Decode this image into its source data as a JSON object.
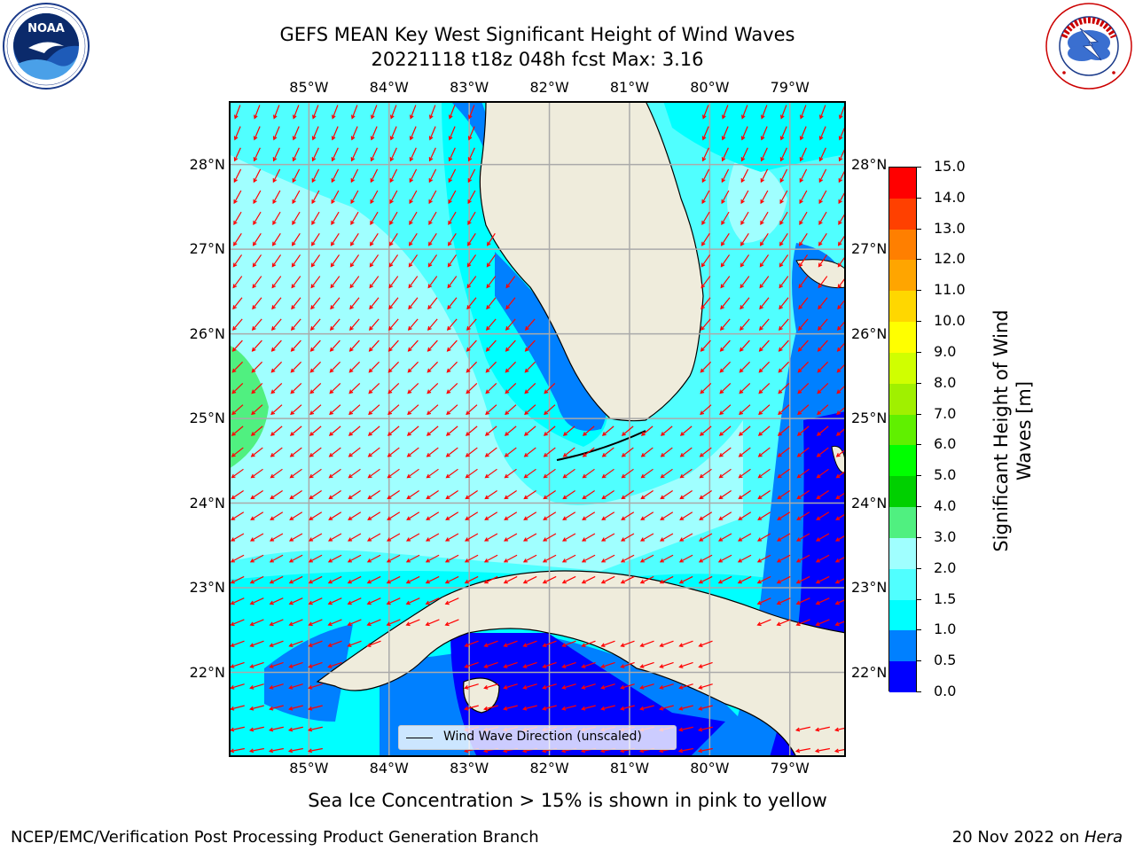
{
  "title": {
    "line1": "GEFS MEAN Key West Significant Height of Wind Waves",
    "line2": "20221118 t18z 048h fcst   Max: 3.16"
  },
  "logos": {
    "noaa_text": "NOAA",
    "noaa_ring": "NATIONAL OCEANIC AND ATMOSPHERIC ADMINISTRATION · U.S. DEPARTMENT OF COMMERCE",
    "nws_ring": "NATIONAL WEATHER SERVICE"
  },
  "map": {
    "lon_ticks": [
      "85°W",
      "84°W",
      "83°W",
      "82°W",
      "81°W",
      "80°W",
      "79°W"
    ],
    "lat_ticks": [
      "28°N",
      "27°N",
      "26°N",
      "25°N",
      "24°N",
      "23°N",
      "22°N"
    ],
    "lon_values": [
      -85,
      -84,
      -83,
      -82,
      -81,
      -80,
      -79
    ],
    "lat_values": [
      28,
      27,
      26,
      25,
      24,
      23,
      22
    ],
    "extent": {
      "lon": [
        -86,
        -78.3
      ],
      "lat": [
        21.0,
        28.75
      ]
    },
    "land_color": "#efecdc",
    "gridlines": true,
    "arrow_color": "#ff0000"
  },
  "colorbar": {
    "label": "Significant Height of Wind Waves [m]",
    "levels": [
      "0.0",
      "0.5",
      "1.0",
      "1.5",
      "2.0",
      "3.0",
      "4.0",
      "5.0",
      "6.0",
      "7.0",
      "8.0",
      "9.0",
      "10.0",
      "11.0",
      "12.0",
      "13.0",
      "14.0",
      "15.0"
    ],
    "colors": [
      "#0000ff",
      "#0080ff",
      "#00ffff",
      "#50ffff",
      "#a0ffff",
      "#50f080",
      "#00d000",
      "#00ff00",
      "#60f000",
      "#a0f000",
      "#d0ff00",
      "#ffff00",
      "#ffd700",
      "#ffa500",
      "#ff7f00",
      "#ff4000",
      "#ff0000"
    ]
  },
  "legend": {
    "entry": "Wind Wave Direction (unscaled)"
  },
  "notes": {
    "sea_ice": "Sea Ice Concentration > 15% is shown in pink to yellow"
  },
  "footer": {
    "left": "NCEP/EMC/Verification Post Processing Product Generation Branch",
    "right_date": "20 Nov 2022 on ",
    "right_host": "Hera"
  }
}
